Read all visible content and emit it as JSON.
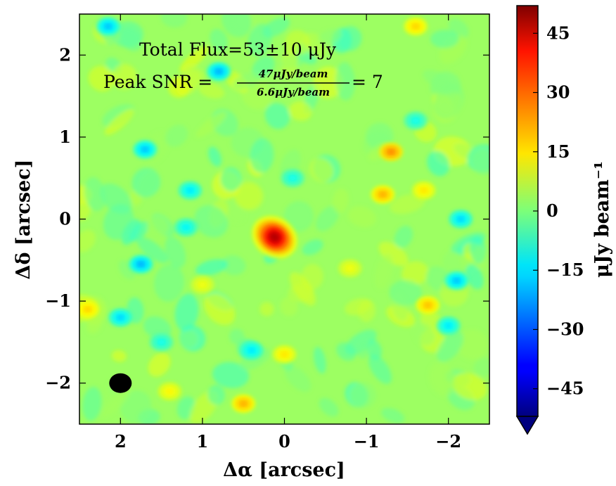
{
  "chart_data": {
    "type": "heatmap",
    "xlabel": "Δα [arcsec]",
    "ylabel": "Δδ [arcsec]",
    "xlim": [
      2.5,
      -2.5
    ],
    "ylim": [
      -2.5,
      2.5
    ],
    "x_ticks": [
      2,
      1,
      0,
      -1,
      -2
    ],
    "x_tick_labels": [
      "2",
      "1",
      "0",
      "−1",
      "−2"
    ],
    "y_ticks": [
      2,
      1,
      0,
      -1,
      -2
    ],
    "y_tick_labels": [
      "2",
      "1",
      "0",
      "−1",
      "−2"
    ],
    "colorbar": {
      "label": "μJy beam⁻¹",
      "colormap": "jet",
      "range": [
        -52,
        52
      ],
      "ticks": [
        45,
        30,
        15,
        0,
        -15,
        -30,
        -45
      ],
      "tick_labels": [
        "45",
        "30",
        "15",
        "0",
        "−15",
        "−30",
        "−45"
      ],
      "extend": "min"
    },
    "annotations": {
      "total_flux": "Total Flux=53±10 μJy",
      "snr_prefix": "Peak SNR =",
      "snr_numerator": "47μJy/beam",
      "snr_denominator": "6.6μJy/beam",
      "snr_suffix": "= 7"
    },
    "background_level": 3,
    "source": {
      "x": 0.12,
      "y": -0.22,
      "peak": 47
    },
    "beam": {
      "x": 2.0,
      "y": -2.0,
      "color": "#000000"
    },
    "features": [
      {
        "x": 2.15,
        "y": 2.35,
        "v": -20
      },
      {
        "x": 0.8,
        "y": 1.8,
        "v": -22
      },
      {
        "x": 1.7,
        "y": 0.85,
        "v": -20
      },
      {
        "x": 1.15,
        "y": 0.35,
        "v": -16
      },
      {
        "x": 1.2,
        "y": -0.1,
        "v": -14
      },
      {
        "x": 1.75,
        "y": -0.55,
        "v": -22
      },
      {
        "x": 2.0,
        "y": -1.2,
        "v": -18
      },
      {
        "x": 1.5,
        "y": -1.5,
        "v": -12
      },
      {
        "x": 0.4,
        "y": -1.6,
        "v": -16
      },
      {
        "x": -0.1,
        "y": 0.5,
        "v": -12
      },
      {
        "x": -2.15,
        "y": 0.0,
        "v": -18
      },
      {
        "x": -2.1,
        "y": -0.75,
        "v": -20
      },
      {
        "x": -2.0,
        "y": -1.3,
        "v": -16
      },
      {
        "x": -1.6,
        "y": 1.2,
        "v": -12
      },
      {
        "x": -1.3,
        "y": 0.82,
        "v": 26
      },
      {
        "x": -1.2,
        "y": 0.3,
        "v": 22
      },
      {
        "x": -1.75,
        "y": -1.05,
        "v": 20
      },
      {
        "x": -1.7,
        "y": 0.35,
        "v": 16
      },
      {
        "x": 0.5,
        "y": -2.25,
        "v": 22
      },
      {
        "x": 0.0,
        "y": -1.65,
        "v": 16
      },
      {
        "x": -1.6,
        "y": 2.35,
        "v": 18
      },
      {
        "x": -0.8,
        "y": -0.6,
        "v": 12
      },
      {
        "x": 1.0,
        "y": -0.8,
        "v": 12
      },
      {
        "x": 2.4,
        "y": -1.1,
        "v": 18
      },
      {
        "x": 1.4,
        "y": -2.1,
        "v": 14
      }
    ]
  }
}
